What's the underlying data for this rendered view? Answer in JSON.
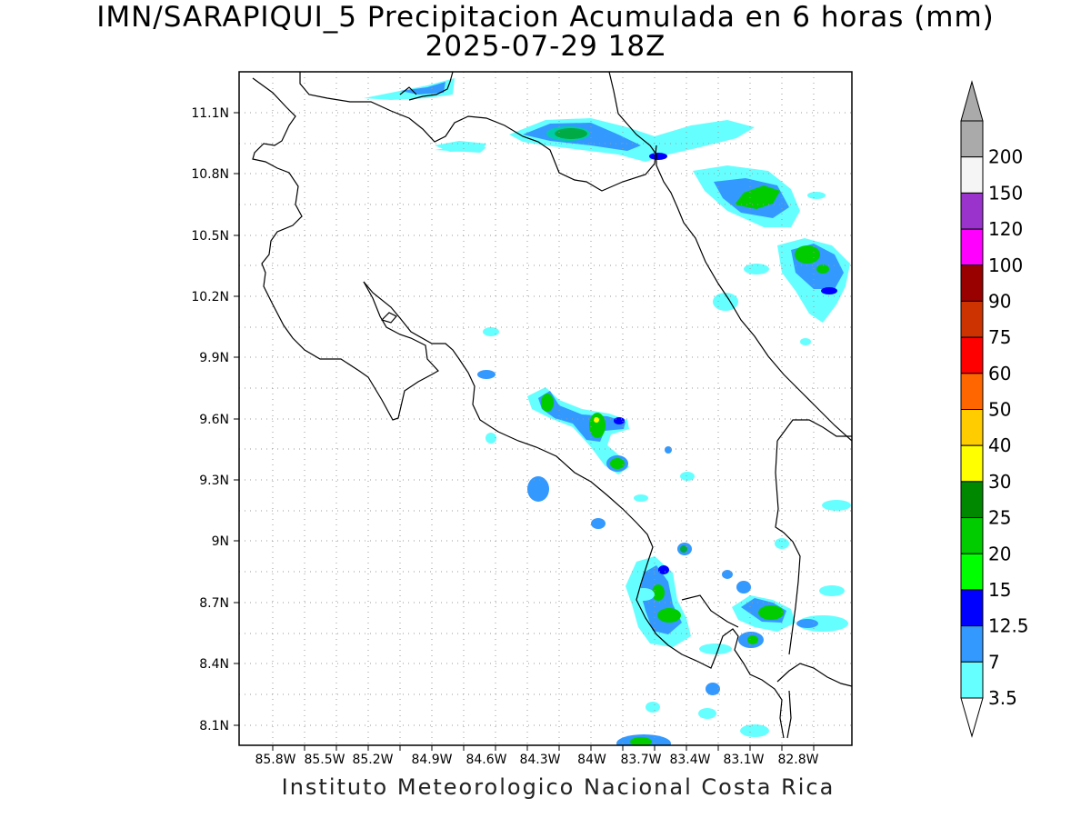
{
  "header": {
    "title_line1": "IMN/SARAPIQUI_5 Precipitacion Acumulada en 6 horas (mm)",
    "title_line2": "2025-07-29 18Z"
  },
  "footer": {
    "credit": "Instituto Meteorologico Nacional Costa Rica"
  },
  "map": {
    "lon_ticks": [
      "85.8W",
      "85.5W",
      "85.2W",
      "84.9W",
      "84.6W",
      "84.3W",
      "84W",
      "83.7W",
      "83.4W",
      "83.1W",
      "82.8W"
    ],
    "lat_ticks": [
      "11.1N",
      "10.8N",
      "10.5N",
      "10.2N",
      "9.9N",
      "9.6N",
      "9.3N",
      "9N",
      "8.7N",
      "8.4N",
      "8.1N"
    ],
    "grid": "dotted"
  },
  "colorbar": {
    "levels": [
      "3.5",
      "7",
      "12.5",
      "15",
      "20",
      "25",
      "30",
      "40",
      "50",
      "60",
      "75",
      "90",
      "100",
      "120",
      "150",
      "200"
    ],
    "colors": [
      "#66ffff",
      "#3399ff",
      "#0000ff",
      "#00ff00",
      "#00cc00",
      "#008800",
      "#ffff00",
      "#ffcc00",
      "#ff6600",
      "#ff0000",
      "#cc3300",
      "#990000",
      "#ff00ff",
      "#9933cc",
      "#f5f5f5",
      "#aaaaaa"
    ]
  }
}
